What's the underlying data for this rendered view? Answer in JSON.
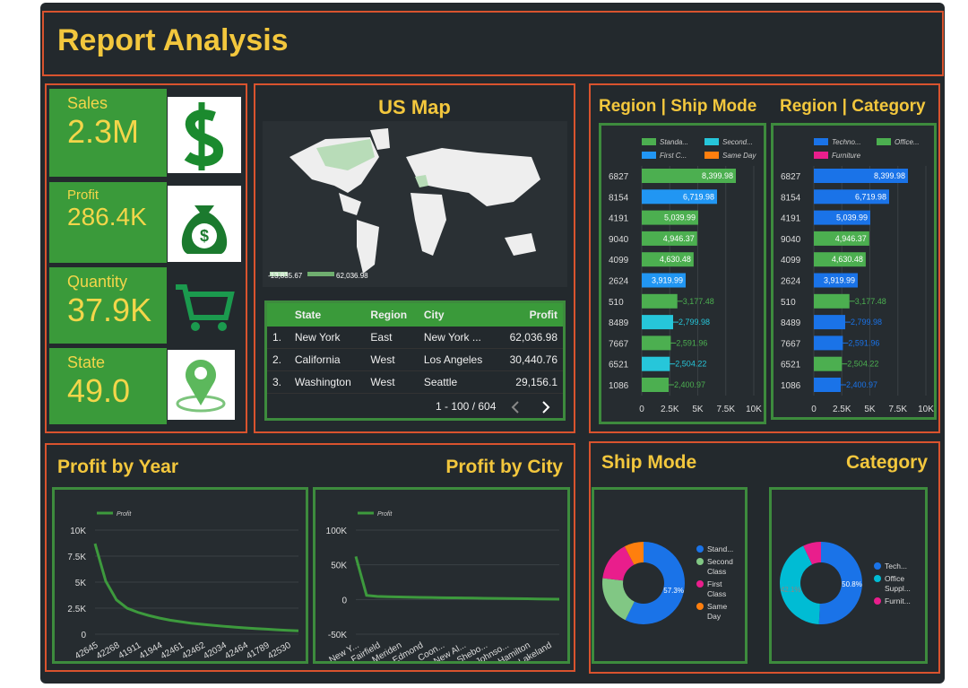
{
  "header": {
    "title": "Report Analysis"
  },
  "kpis": [
    {
      "label": "Sales",
      "value": "2.3M"
    },
    {
      "label": "Profit",
      "value": "286.4K"
    },
    {
      "label": "Quantity",
      "value": "37.9K"
    },
    {
      "label": "State",
      "value": "49.0"
    }
  ],
  "map": {
    "title": "US Map",
    "legend": [
      "-13,835.67",
      "62,036.98"
    ]
  },
  "table": {
    "columns": [
      "State",
      "Region",
      "City",
      "Profit"
    ],
    "rows": [
      [
        "1.",
        "New York",
        "East",
        "New York ...",
        "62,036.98"
      ],
      [
        "2.",
        "California",
        "West",
        "Los Angeles",
        "30,440.76"
      ],
      [
        "3.",
        "Washington",
        "West",
        "Seattle",
        "29,156.1"
      ]
    ],
    "pagination": "1 - 100 / 604"
  },
  "chart_data": [
    {
      "type": "hbar",
      "title": "Region | Ship Mode",
      "legend": [
        {
          "name": "Standa...",
          "color": "#4caf50"
        },
        {
          "name": "Second...",
          "color": "#26c6da"
        },
        {
          "name": "First C...",
          "color": "#2196f3"
        },
        {
          "name": "Same Day",
          "color": "#ff7f0e"
        }
      ],
      "categories": [
        "6827",
        "8154",
        "4191",
        "9040",
        "4099",
        "2624",
        "510",
        "8489",
        "7667",
        "6521",
        "1086"
      ],
      "values": [
        8399.98,
        6719.98,
        5039.99,
        4946.37,
        4630.48,
        3919.99,
        3177.48,
        2799.98,
        2591.96,
        2504.22,
        2400.97
      ],
      "value_labels": [
        "8,399.98",
        "6,719.98",
        "5,039.99",
        "4,946.37",
        "4,630.48",
        "3,919.99",
        "3,177.48",
        "2,799.98",
        "2,591.96",
        "2,504.22",
        "2,400.97"
      ],
      "colors": [
        "#4caf50",
        "#2196f3",
        "#4caf50",
        "#4caf50",
        "#4caf50",
        "#2196f3",
        "#4caf50",
        "#26c6da",
        "#4caf50",
        "#26c6da",
        "#4caf50"
      ],
      "xlim": [
        0,
        10000
      ],
      "xticks": [
        0,
        {
          "value": 2500,
          "label": "2.5K"
        },
        {
          "value": 5000,
          "label": "5K"
        },
        {
          "value": 7500,
          "label": "7.5K"
        },
        {
          "value": 10000,
          "label": "10K"
        }
      ]
    },
    {
      "type": "hbar",
      "title": "Region | Category",
      "legend": [
        {
          "name": "Techno...",
          "color": "#1a73e8"
        },
        {
          "name": "Office...",
          "color": "#4caf50"
        },
        {
          "name": "Furniture",
          "color": "#e91e8c"
        }
      ],
      "categories": [
        "6827",
        "8154",
        "4191",
        "9040",
        "4099",
        "2624",
        "510",
        "8489",
        "7667",
        "6521",
        "1086"
      ],
      "values": [
        8399.98,
        6719.98,
        5039.99,
        4946.37,
        4630.48,
        3919.99,
        3177.48,
        2799.98,
        2591.96,
        2504.22,
        2400.97
      ],
      "value_labels": [
        "8,399.98",
        "6,719.98",
        "5,039.99",
        "4,946.37",
        "4,630.48",
        "3,919.99",
        "3,177.48",
        "2,799.98",
        "2,591.96",
        "2,504.22",
        "2,400.97"
      ],
      "colors": [
        "#1a73e8",
        "#1a73e8",
        "#1a73e8",
        "#4caf50",
        "#4caf50",
        "#1a73e8",
        "#4caf50",
        "#1a73e8",
        "#1a73e8",
        "#4caf50",
        "#1a73e8"
      ],
      "xlim": [
        0,
        10000
      ],
      "xticks": [
        0,
        {
          "value": 2500,
          "label": "2.5K"
        },
        {
          "value": 5000,
          "label": "5K"
        },
        {
          "value": 7500,
          "label": "7.5K"
        },
        {
          "value": 10000,
          "label": "10K"
        }
      ]
    },
    {
      "type": "line",
      "title": "Profit by Year",
      "categories": [
        "42645",
        null,
        "42268",
        null,
        "41911",
        null,
        "41944",
        null,
        "42461",
        null,
        "42462",
        null,
        "42034",
        null,
        "42464",
        null,
        "41789",
        null,
        "42530",
        null
      ],
      "series": [
        {
          "name": "Profit",
          "color": "#3d9a3d",
          "values": [
            8700,
            5100,
            3300,
            2500,
            2100,
            1800,
            1550,
            1350,
            1200,
            1050,
            950,
            850,
            760,
            680,
            600,
            540,
            480,
            420,
            370,
            320
          ]
        }
      ],
      "ylim": [
        0,
        10000
      ],
      "yticks": [
        0,
        {
          "value": 2500,
          "label": "2.5K"
        },
        {
          "value": 5000,
          "label": "5K"
        },
        {
          "value": 7500,
          "label": "7.5K"
        },
        {
          "value": 10000,
          "label": "10K"
        }
      ]
    },
    {
      "type": "line",
      "title": "Profit by City",
      "categories": [
        "New Y...",
        null,
        "Fairfield",
        null,
        "Meriden",
        null,
        "Edmond",
        null,
        "Coon...",
        null,
        "New Al...",
        null,
        "Shebo...",
        null,
        "Johnso...",
        null,
        "Hamilton",
        null,
        "Lakeland",
        null
      ],
      "series": [
        {
          "name": "Profit",
          "color": "#3d9a3d",
          "values": [
            62036.98,
            6000,
            4500,
            4000,
            3600,
            3300,
            3000,
            2800,
            2600,
            2400,
            2200,
            2000,
            1800,
            1600,
            1400,
            1200,
            1000,
            800,
            600,
            400
          ]
        }
      ],
      "ylim": [
        -50000,
        100000
      ],
      "yticks": [
        {
          "value": -50000,
          "label": "-50K"
        },
        0,
        {
          "value": 50000,
          "label": "50K"
        },
        {
          "value": 100000,
          "label": "100K"
        }
      ]
    },
    {
      "type": "donut",
      "title": "Ship Mode",
      "categories": [
        "Stand...",
        "Second Class",
        "First Class",
        "Same Day"
      ],
      "values": [
        57.3,
        19.6,
        15.5,
        7.6
      ],
      "value_labels": [
        "57.3%",
        null,
        null,
        null
      ],
      "colors": [
        "#1a73e8",
        "#81c784",
        "#e91e8c",
        "#ff7f0e"
      ]
    },
    {
      "type": "donut",
      "title": "Category",
      "categories": [
        "Tech...",
        "Office Suppl...",
        "Furnit..."
      ],
      "values": [
        50.8,
        42.1,
        7.1
      ],
      "value_labels": [
        "50.8%",
        "42.1%",
        null
      ],
      "colors": [
        "#1a73e8",
        "#00bcd4",
        "#e91e8c"
      ]
    }
  ]
}
